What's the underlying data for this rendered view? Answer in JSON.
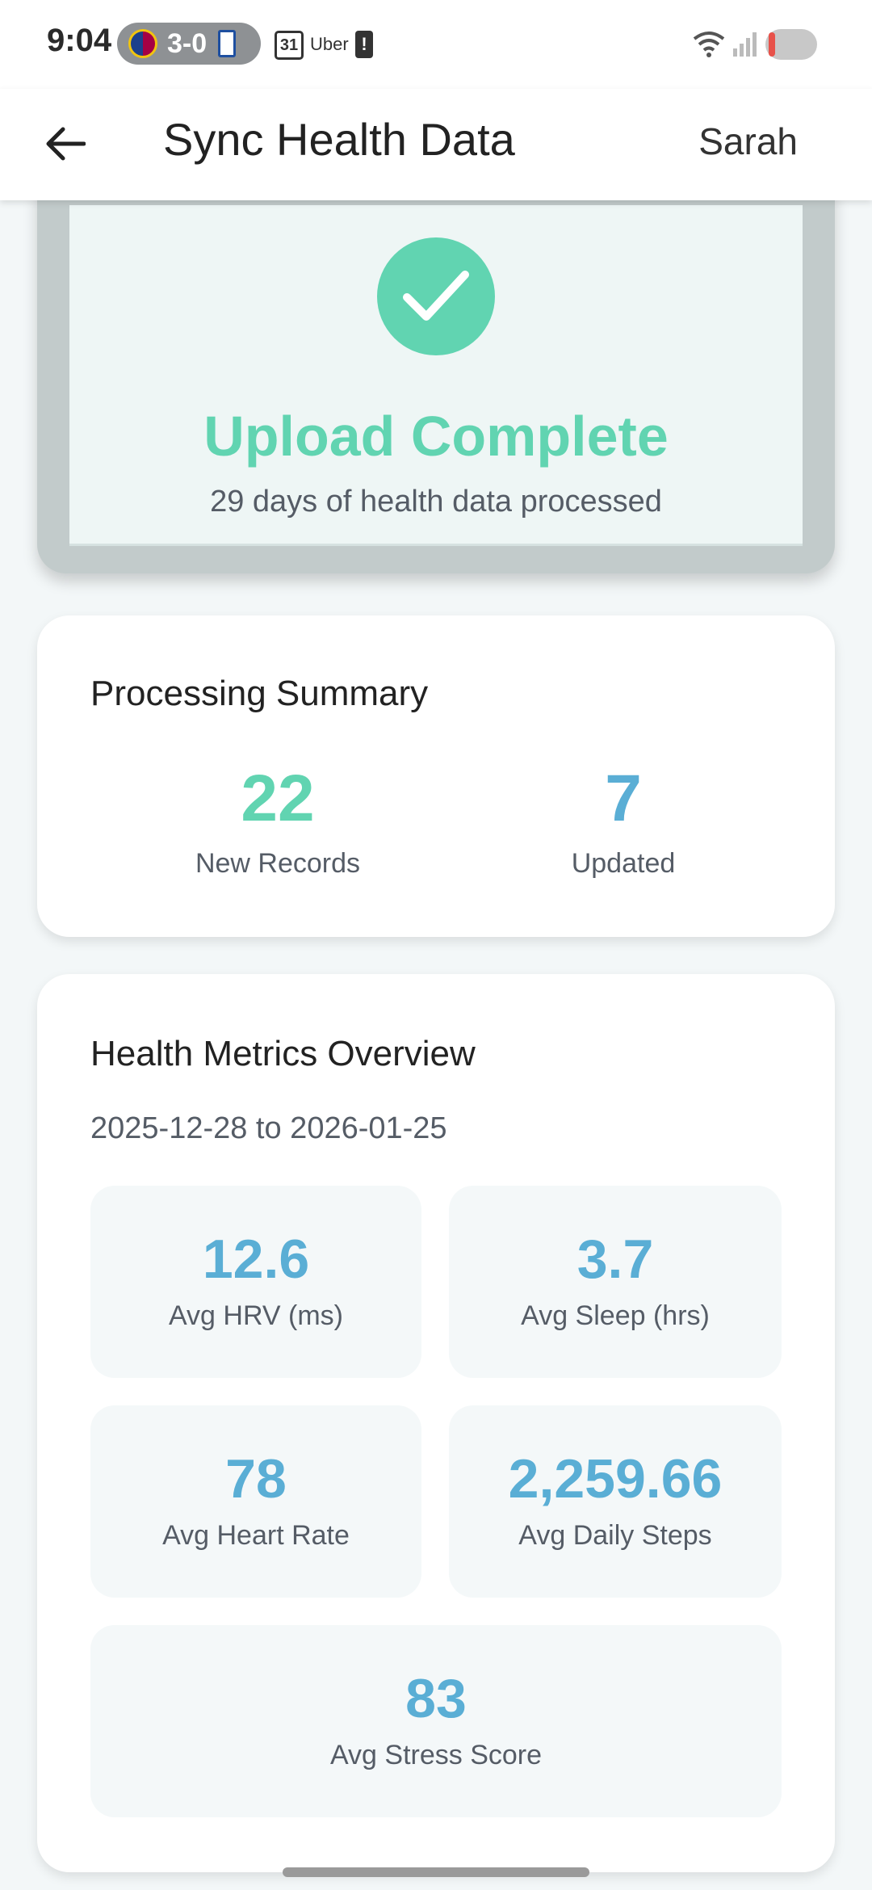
{
  "status_bar": {
    "time": "9:04",
    "score": "3-0",
    "calendar_day": "31",
    "uber": "Uber",
    "battery_alert": "!",
    "icons": [
      "barcelona-badge",
      "oviedo-badge",
      "calendar-icon",
      "battery-alert-icon",
      "wifi-icon",
      "signal-icon",
      "toggle"
    ]
  },
  "app_bar": {
    "back_icon": "arrow-left",
    "title": "Sync Health Data",
    "user": "Sarah"
  },
  "upload": {
    "icon": "check-circle",
    "title": "Upload Complete",
    "subtitle": "29 days of health data processed"
  },
  "summary": {
    "heading": "Processing Summary",
    "new_records": {
      "value": "22",
      "label": "New Records"
    },
    "updated": {
      "value": "7",
      "label": "Updated"
    }
  },
  "metrics": {
    "heading": "Health Metrics Overview",
    "date_range": "2025-12-28 to 2026-01-25",
    "items": [
      {
        "value": "12.6",
        "label": "Avg HRV (ms)"
      },
      {
        "value": "3.7",
        "label": "Avg Sleep (hrs)"
      },
      {
        "value": "78",
        "label": "Avg Heart Rate"
      },
      {
        "value": "2,259.66",
        "label": "Avg Daily Steps"
      },
      {
        "value": "83",
        "label": "Avg Stress Score"
      }
    ]
  },
  "colors": {
    "accent_green": "#61d4b1",
    "accent_blue": "#5aaed5",
    "background": "#f3f7f8"
  }
}
